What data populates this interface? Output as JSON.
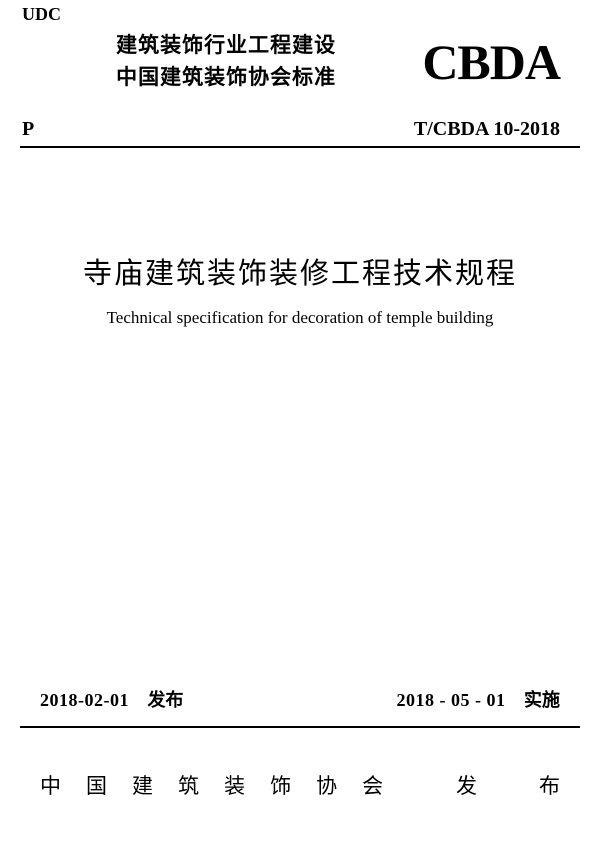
{
  "udc": "UDC",
  "header": {
    "line1": "建筑装饰行业工程建设",
    "line2": "中国建筑装饰协会标准",
    "logo": "CBDA"
  },
  "p_mark": "P",
  "standard_code": "T/CBDA 10-2018",
  "title_cn": "寺庙建筑装饰装修工程技术规程",
  "title_en": "Technical specification for decoration of temple building",
  "issue": {
    "date": "2018-02-01",
    "label": "发布"
  },
  "effective": {
    "date": "2018 - 05 - 01",
    "label": "实施"
  },
  "publisher": {
    "org_chars": [
      "中",
      "国",
      "建",
      "筑",
      "装",
      "饰",
      "协",
      "会"
    ],
    "pub_chars": [
      "发",
      "布"
    ]
  }
}
